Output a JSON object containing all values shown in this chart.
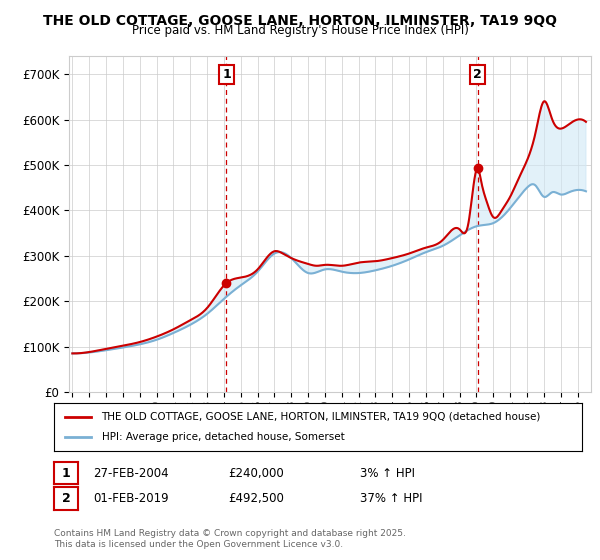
{
  "title": "THE OLD COTTAGE, GOOSE LANE, HORTON, ILMINSTER, TA19 9QQ",
  "subtitle": "Price paid vs. HM Land Registry's House Price Index (HPI)",
  "ylabel_ticks": [
    "£0",
    "£100K",
    "£200K",
    "£300K",
    "£400K",
    "£500K",
    "£600K",
    "£700K"
  ],
  "ytick_values": [
    0,
    100000,
    200000,
    300000,
    400000,
    500000,
    600000,
    700000
  ],
  "ylim": [
    0,
    740000
  ],
  "xlim_start": 1994.8,
  "xlim_end": 2025.8,
  "sale1_date": 2004.15,
  "sale1_price": 240000,
  "sale1_label": "1",
  "sale2_date": 2019.08,
  "sale2_price": 492500,
  "sale2_label": "2",
  "legend_line1": "THE OLD COTTAGE, GOOSE LANE, HORTON, ILMINSTER, TA19 9QQ (detached house)",
  "legend_line2": "HPI: Average price, detached house, Somerset",
  "annotation1_date": "27-FEB-2004",
  "annotation1_price": "£240,000",
  "annotation1_hpi": "3% ↑ HPI",
  "annotation2_date": "01-FEB-2019",
  "annotation2_price": "£492,500",
  "annotation2_hpi": "37% ↑ HPI",
  "footer": "Contains HM Land Registry data © Crown copyright and database right 2025.\nThis data is licensed under the Open Government Licence v3.0.",
  "line_red": "#cc0000",
  "line_blue": "#7ab0d4",
  "fill_blue": "#d0e8f5",
  "background": "#ffffff",
  "grid_color": "#cccccc",
  "xticks": [
    1995,
    1996,
    1997,
    1998,
    1999,
    2000,
    2001,
    2002,
    2003,
    2004,
    2005,
    2006,
    2007,
    2008,
    2009,
    2010,
    2011,
    2012,
    2013,
    2014,
    2015,
    2016,
    2017,
    2018,
    2019,
    2020,
    2021,
    2022,
    2023,
    2024,
    2025
  ]
}
